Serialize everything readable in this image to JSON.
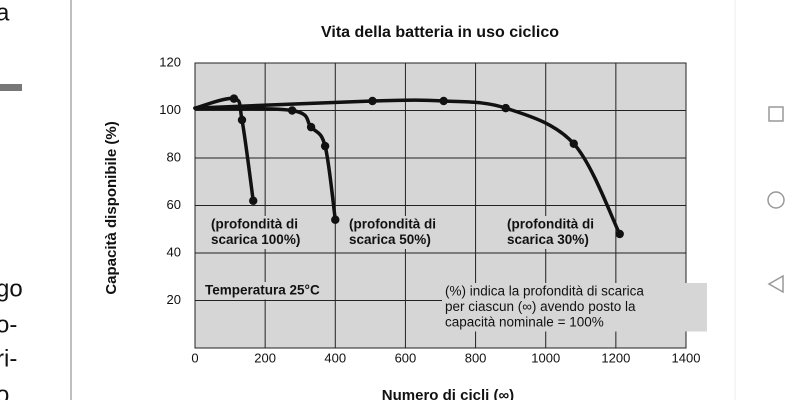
{
  "sidebar_text": [
    "a",
    "go",
    "o-",
    "ri-",
    "o"
  ],
  "chart_data": {
    "type": "line",
    "title": "Vita della batteria in uso ciclico",
    "ylabel": "Capacità disponibile (%)",
    "xlabel": "Numero di cicli (∞)",
    "xlim": [
      0,
      1400
    ],
    "xticks": [
      0,
      200,
      400,
      600,
      800,
      1000,
      1200,
      1400
    ],
    "ylim": [
      0,
      120
    ],
    "yticks": [
      20,
      40,
      60,
      80,
      100,
      120
    ],
    "grid": true,
    "series": [
      {
        "color": "#111111",
        "x": [
          0,
          111,
          134,
          166
        ],
        "values": [
          101,
          105,
          96,
          62
        ]
      },
      {
        "color": "#111111",
        "x": [
          0,
          277,
          331,
          371,
          400
        ],
        "values": [
          101,
          100,
          93,
          85,
          54
        ]
      },
      {
        "color": "#111111",
        "x": [
          0,
          506,
          709,
          886,
          1080,
          1211
        ],
        "values": [
          101,
          104,
          104,
          101,
          86,
          48
        ]
      }
    ],
    "annotations": [
      {
        "lines": [
          "(profondità di",
          "scarica 100%)"
        ]
      },
      {
        "lines": [
          "(profondità di",
          "scarica 50%)"
        ]
      },
      {
        "lines": [
          "(profondità di",
          "scarica 30%)"
        ]
      },
      {
        "lines": [
          "Temperatura 25°C"
        ]
      },
      {
        "lines": [
          "(%) indica la profondità di scarica",
          "per ciascun (∞) avendo posto la",
          "capacità  nominale  =  100%"
        ]
      }
    ]
  }
}
